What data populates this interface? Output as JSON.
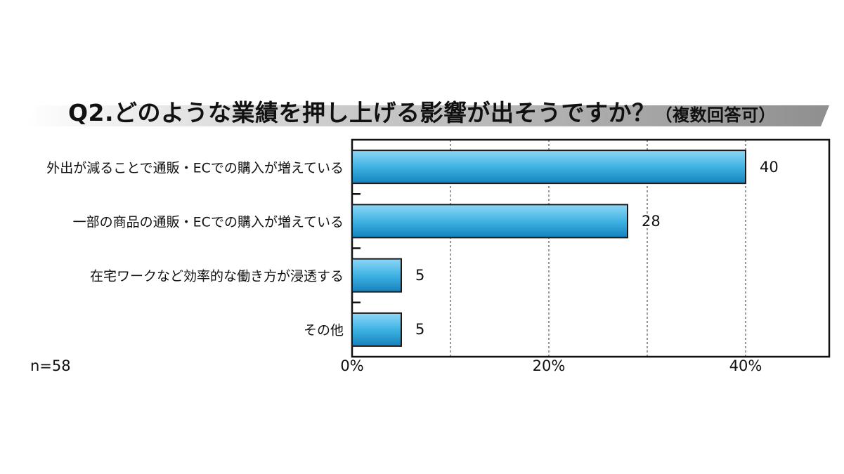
{
  "chart_data": {
    "type": "bar",
    "orientation": "horizontal",
    "title": "Q2.どのような業績を押し上げる影響が出そうですか？",
    "subtitle": "（複数回答可）",
    "categories": [
      "外出が減ることで通販・ECでの購入が増えている",
      "一部の商品の通販・ECでの購入が増えている",
      "在宅ワークなど効率的な働き方が浸透する",
      "その他"
    ],
    "values": [
      40,
      28,
      5,
      5
    ],
    "value_labels": [
      "40",
      "28",
      "5",
      "5"
    ],
    "xlim": [
      0,
      48.5
    ],
    "x_ticks": [
      0,
      20,
      40
    ],
    "x_tick_labels": [
      "0%",
      "20%",
      "40%"
    ],
    "grid": "vertical dashed every 10%",
    "bar_color": "#3fa8d8",
    "note": "n=58"
  }
}
